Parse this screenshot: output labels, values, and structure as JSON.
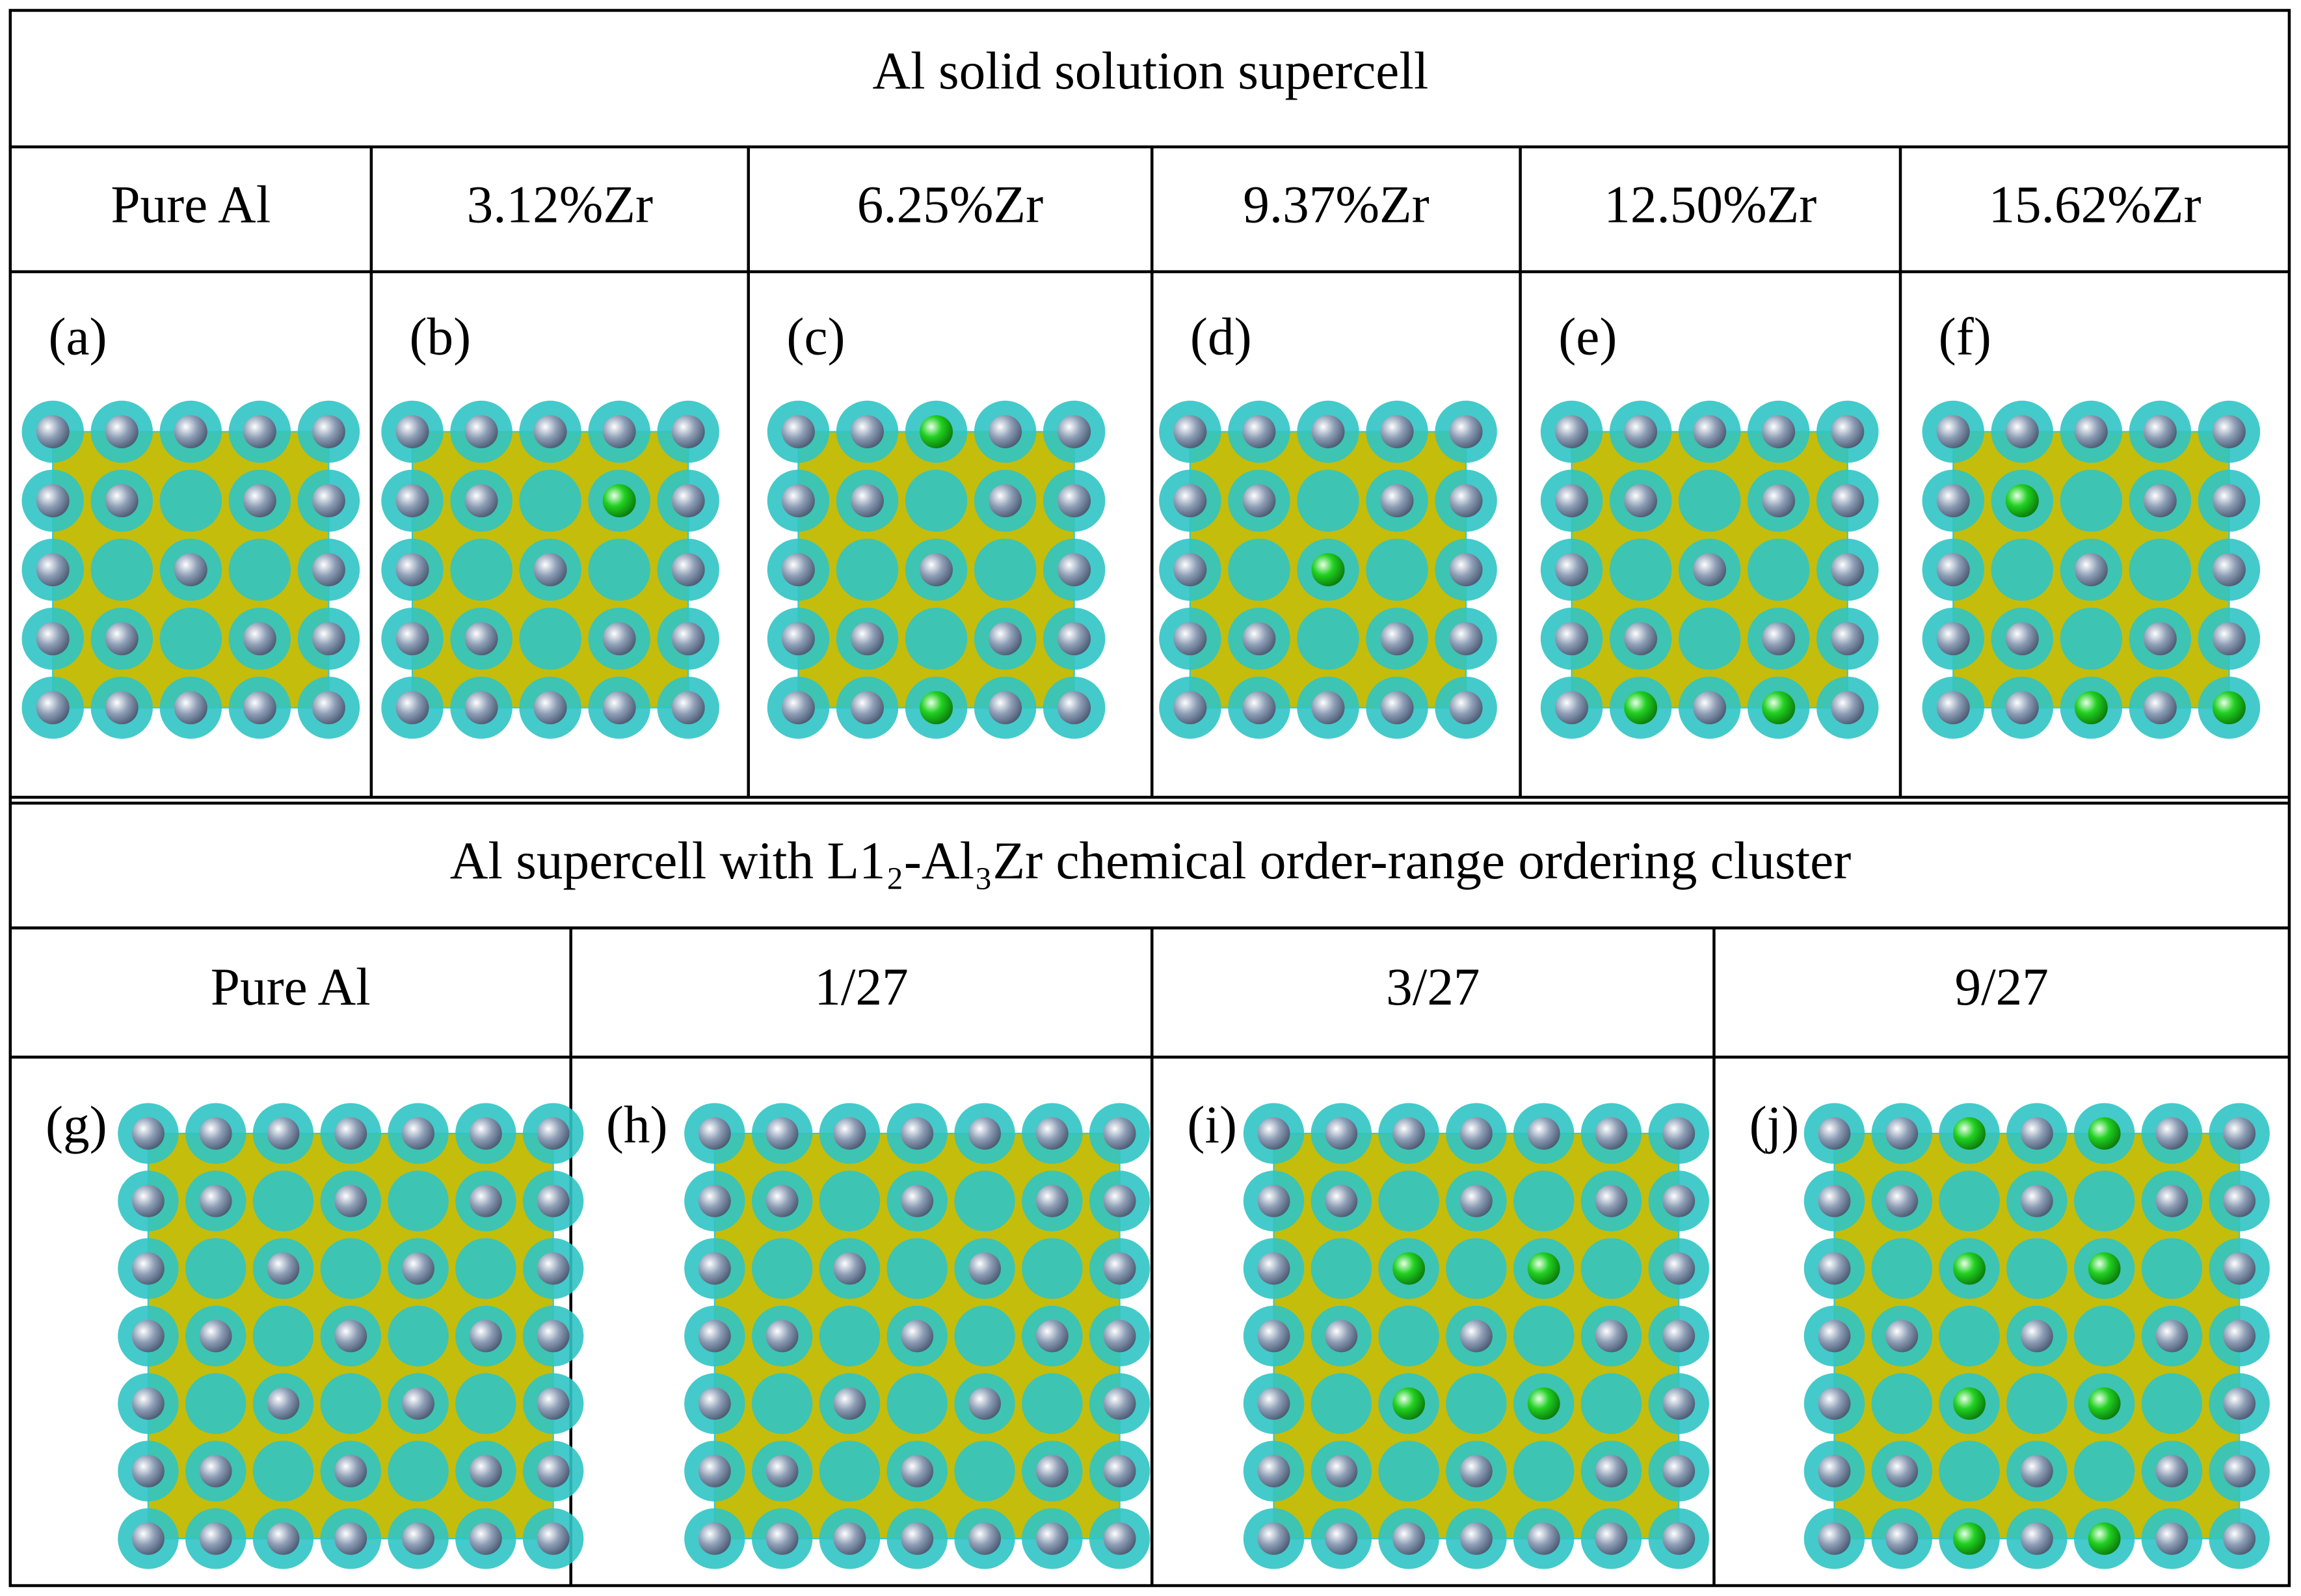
{
  "title": "Al solid solution supercell",
  "columns": [
    "Pure Al",
    "3.12%Zr",
    "6.25%Zr",
    "9.37%Zr",
    "12.50%Zr",
    "15.62%Zr"
  ],
  "panels": [
    "(a)",
    "(b)",
    "(c)",
    "(d)",
    "(e)",
    "(f)"
  ],
  "title2": "Al supercell with L1₂-Al₃Zr chemical order-range ordering cluster",
  "columns2": [
    "Pure Al",
    "1/27",
    "3/27",
    "9/27"
  ],
  "panels2": [
    "(g)",
    "(h)",
    "(i)",
    "(j)"
  ]
}
